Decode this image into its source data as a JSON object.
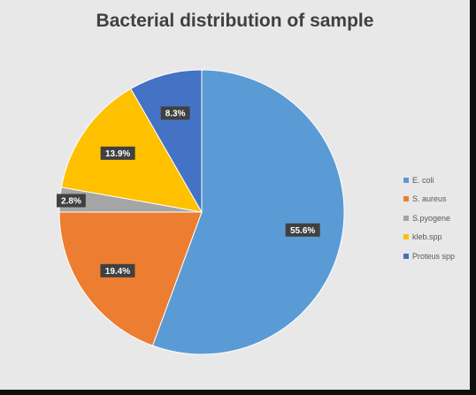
{
  "chart_data": {
    "type": "pie",
    "title": "Bacterial distribution of sample",
    "categories": [
      "E. coli",
      "S. aureus",
      "S.pyogene",
      "kleb.spp",
      "Proteus spp"
    ],
    "values": [
      55.6,
      19.4,
      2.8,
      13.9,
      8.3
    ],
    "data_labels": [
      "55.6%",
      "19.4%",
      "2.8%",
      "13.9%",
      "8.3%"
    ],
    "colors": [
      "#5B9BD5",
      "#ED7D31",
      "#A5A5A5",
      "#FFC000",
      "#4472C4"
    ],
    "legend_position": "right",
    "start_angle": "12 o'clock",
    "direction": "clockwise"
  }
}
